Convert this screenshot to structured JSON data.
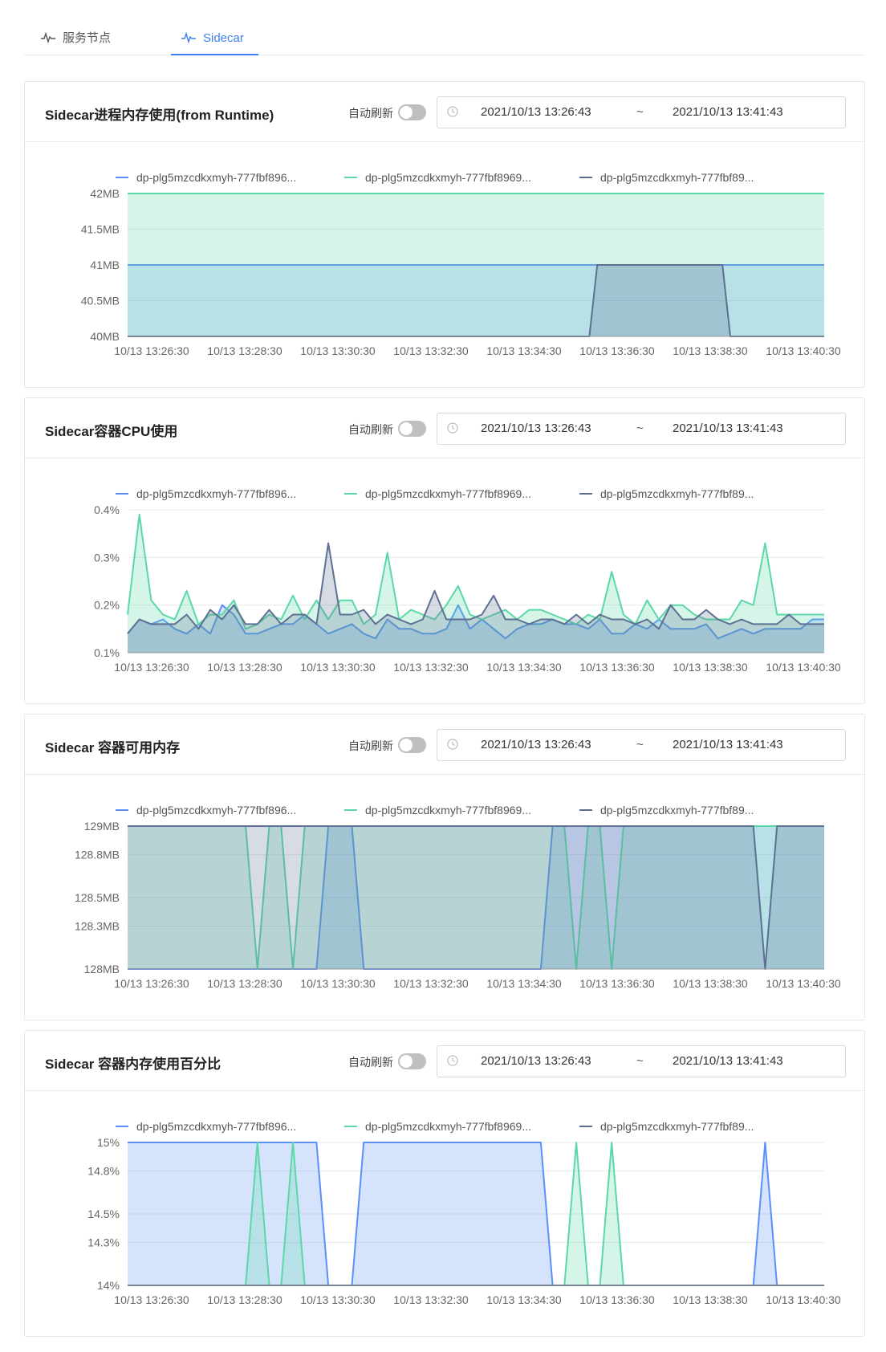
{
  "tabs": [
    {
      "label": "服务节点",
      "icon": "pulse-icon",
      "active": false
    },
    {
      "label": "Sidecar",
      "icon": "pulse-icon",
      "active": true
    }
  ],
  "colors": {
    "series1": "#5b8ff9",
    "series2": "#5ad8a6",
    "series3": "#5d7092",
    "accent": "#3d7ff0"
  },
  "panels": [
    {
      "title": "Sidecar进程内存使用(from Runtime)",
      "auto_refresh_label": "自动刷新",
      "start": "2021/10/13 13:26:43",
      "separator": "~",
      "end": "2021/10/13 13:41:43"
    },
    {
      "title": "Sidecar容器CPU使用",
      "auto_refresh_label": "自动刷新",
      "start": "2021/10/13 13:26:43",
      "separator": "~",
      "end": "2021/10/13 13:41:43"
    },
    {
      "title": "Sidecar 容器可用内存",
      "auto_refresh_label": "自动刷新",
      "start": "2021/10/13 13:26:43",
      "separator": "~",
      "end": "2021/10/13 13:41:43"
    },
    {
      "title": "Sidecar 容器内存使用百分比",
      "auto_refresh_label": "自动刷新",
      "start": "2021/10/13 13:26:43",
      "separator": "~",
      "end": "2021/10/13 13:41:43"
    }
  ],
  "chart_data": [
    {
      "type": "area",
      "legend": [
        "dp-plg5mzcdkxmyh-777fbf896...",
        "dp-plg5mzcdkxmyh-777fbf8969...",
        "dp-plg5mzcdkxmyh-777fbf89..."
      ],
      "ylim": [
        40,
        42
      ],
      "yticks": [
        40,
        40.5,
        41,
        41.5,
        42
      ],
      "ytick_labels": [
        "40MB",
        "40.5MB",
        "41MB",
        "41.5MB",
        "42MB"
      ],
      "xtick_labels": [
        "10/13 13:26:30",
        "10/13 13:28:30",
        "10/13 13:30:30",
        "10/13 13:32:30",
        "10/13 13:34:30",
        "10/13 13:36:30",
        "10/13 13:38:30",
        "10/13 13:40:30"
      ],
      "series": [
        {
          "values": [
            41,
            41,
            41,
            41,
            41,
            41,
            41,
            41,
            41,
            41,
            41,
            41,
            41,
            41,
            41,
            41,
            41,
            41,
            41,
            41,
            41,
            41,
            41,
            41,
            41,
            41,
            41,
            41,
            41,
            41,
            41,
            41,
            41,
            41,
            41,
            41,
            41,
            41,
            41,
            41,
            41,
            41,
            41,
            41,
            41,
            41,
            41,
            41,
            41,
            41,
            41,
            41,
            41,
            41,
            41,
            41,
            41,
            41,
            41,
            41,
            41,
            41,
            41,
            41,
            41,
            41,
            41,
            41,
            41,
            41,
            41,
            41,
            41,
            41,
            41,
            41,
            41,
            41,
            41,
            41,
            41,
            41,
            41,
            41,
            41,
            41,
            41,
            41,
            41,
            41
          ]
        },
        {
          "values": [
            42,
            42,
            42,
            42,
            42,
            42,
            42,
            42,
            42,
            42,
            42,
            42,
            42,
            42,
            42,
            42,
            42,
            42,
            42,
            42,
            42,
            42,
            42,
            42,
            42,
            42,
            42,
            42,
            42,
            42,
            42,
            42,
            42,
            42,
            42,
            42,
            42,
            42,
            42,
            42,
            42,
            42,
            42,
            42,
            42,
            42,
            42,
            42,
            42,
            42,
            42,
            42,
            42,
            42,
            42,
            42,
            42,
            42,
            42,
            42,
            42,
            42,
            42,
            42,
            42,
            42,
            42,
            42,
            42,
            42,
            42,
            42,
            42,
            42,
            42,
            42,
            42,
            42,
            42,
            42,
            42,
            42,
            42,
            42,
            42,
            42,
            42,
            42,
            42,
            42
          ]
        },
        {
          "values": [
            40,
            40,
            40,
            40,
            40,
            40,
            40,
            40,
            40,
            40,
            40,
            40,
            40,
            40,
            40,
            40,
            40,
            40,
            40,
            40,
            40,
            40,
            40,
            40,
            40,
            40,
            40,
            40,
            40,
            40,
            40,
            40,
            40,
            40,
            40,
            40,
            40,
            40,
            40,
            40,
            40,
            40,
            40,
            40,
            40,
            40,
            40,
            40,
            40,
            40,
            40,
            40,
            40,
            40,
            40,
            40,
            40,
            40,
            40,
            40,
            41,
            41,
            41,
            41,
            41,
            41,
            41,
            41,
            41,
            41,
            41,
            41,
            41,
            41,
            41,
            41,
            41,
            40,
            40,
            40,
            40,
            40,
            40,
            40,
            40,
            40,
            40,
            40,
            40,
            40
          ]
        }
      ]
    },
    {
      "type": "area",
      "legend": [
        "dp-plg5mzcdkxmyh-777fbf896...",
        "dp-plg5mzcdkxmyh-777fbf8969...",
        "dp-plg5mzcdkxmyh-777fbf89..."
      ],
      "ylim": [
        0.1,
        0.4
      ],
      "yticks": [
        0.1,
        0.2,
        0.3,
        0.4
      ],
      "ytick_labels": [
        "0.1%",
        "0.2%",
        "0.3%",
        "0.4%"
      ],
      "xtick_labels": [
        "10/13 13:26:30",
        "10/13 13:28:30",
        "10/13 13:30:30",
        "10/13 13:32:30",
        "10/13 13:34:30",
        "10/13 13:36:30",
        "10/13 13:38:30",
        "10/13 13:40:30"
      ],
      "series": [
        {
          "values": [
            0.14,
            0.17,
            0.16,
            0.17,
            0.15,
            0.14,
            0.16,
            0.14,
            0.2,
            0.18,
            0.14,
            0.14,
            0.15,
            0.16,
            0.16,
            0.18,
            0.16,
            0.14,
            0.15,
            0.16,
            0.14,
            0.13,
            0.17,
            0.15,
            0.15,
            0.14,
            0.14,
            0.15,
            0.2,
            0.15,
            0.17,
            0.15,
            0.13,
            0.15,
            0.16,
            0.16,
            0.17,
            0.16,
            0.16,
            0.15,
            0.17,
            0.14,
            0.14,
            0.16,
            0.15,
            0.17,
            0.15,
            0.15,
            0.15,
            0.16,
            0.13,
            0.14,
            0.15,
            0.14,
            0.15,
            0.15,
            0.15,
            0.15,
            0.17,
            0.17
          ]
        },
        {
          "values": [
            0.18,
            0.39,
            0.21,
            0.18,
            0.17,
            0.23,
            0.16,
            0.18,
            0.18,
            0.21,
            0.15,
            0.16,
            0.18,
            0.17,
            0.22,
            0.17,
            0.21,
            0.17,
            0.21,
            0.21,
            0.16,
            0.18,
            0.31,
            0.17,
            0.19,
            0.18,
            0.17,
            0.2,
            0.24,
            0.18,
            0.17,
            0.18,
            0.19,
            0.17,
            0.19,
            0.19,
            0.18,
            0.17,
            0.16,
            0.18,
            0.17,
            0.27,
            0.18,
            0.16,
            0.21,
            0.17,
            0.2,
            0.2,
            0.18,
            0.17,
            0.17,
            0.17,
            0.21,
            0.2,
            0.33,
            0.18,
            0.18,
            0.18,
            0.18,
            0.18
          ]
        },
        {
          "values": [
            0.14,
            0.17,
            0.16,
            0.16,
            0.16,
            0.18,
            0.15,
            0.19,
            0.17,
            0.2,
            0.16,
            0.16,
            0.19,
            0.16,
            0.18,
            0.18,
            0.16,
            0.33,
            0.18,
            0.18,
            0.19,
            0.16,
            0.18,
            0.17,
            0.16,
            0.17,
            0.23,
            0.17,
            0.17,
            0.17,
            0.18,
            0.22,
            0.17,
            0.17,
            0.16,
            0.17,
            0.17,
            0.16,
            0.18,
            0.16,
            0.18,
            0.17,
            0.17,
            0.16,
            0.17,
            0.15,
            0.2,
            0.17,
            0.17,
            0.19,
            0.17,
            0.16,
            0.17,
            0.16,
            0.16,
            0.16,
            0.18,
            0.16,
            0.16,
            0.16
          ]
        }
      ]
    },
    {
      "type": "area",
      "legend": [
        "dp-plg5mzcdkxmyh-777fbf896...",
        "dp-plg5mzcdkxmyh-777fbf8969...",
        "dp-plg5mzcdkxmyh-777fbf89..."
      ],
      "ylim": [
        128,
        129
      ],
      "yticks": [
        128,
        128.3,
        128.5,
        128.8,
        129
      ],
      "ytick_labels": [
        "128MB",
        "128.3MB",
        "128.5MB",
        "128.8MB",
        "129MB"
      ],
      "xtick_labels": [
        "10/13 13:26:30",
        "10/13 13:28:30",
        "10/13 13:30:30",
        "10/13 13:32:30",
        "10/13 13:34:30",
        "10/13 13:36:30",
        "10/13 13:38:30",
        "10/13 13:40:30"
      ],
      "series": [
        {
          "values": [
            128,
            128,
            128,
            128,
            128,
            128,
            128,
            128,
            128,
            128,
            128,
            128,
            128,
            128,
            128,
            128,
            128,
            129,
            129,
            129,
            128,
            128,
            128,
            128,
            128,
            128,
            128,
            128,
            128,
            128,
            128,
            128,
            128,
            128,
            128,
            128,
            129,
            129,
            129,
            129,
            129,
            129,
            129,
            129,
            129,
            129,
            129,
            129,
            129,
            129,
            129,
            129,
            129,
            129,
            129,
            129,
            129,
            129,
            129,
            129
          ]
        },
        {
          "values": [
            129,
            129,
            129,
            129,
            129,
            129,
            129,
            129,
            129,
            129,
            129,
            128,
            129,
            129,
            128,
            129,
            129,
            129,
            129,
            129,
            129,
            129,
            129,
            129,
            129,
            129,
            129,
            129,
            129,
            129,
            129,
            129,
            129,
            129,
            129,
            129,
            129,
            129,
            128,
            129,
            129,
            128,
            129,
            129,
            129,
            129,
            129,
            129,
            129,
            129,
            129,
            129,
            129,
            129,
            129,
            129,
            129,
            129,
            129,
            129
          ]
        },
        {
          "values": [
            129,
            129,
            129,
            129,
            129,
            129,
            129,
            129,
            129,
            129,
            129,
            129,
            129,
            129,
            129,
            129,
            129,
            129,
            129,
            129,
            129,
            129,
            129,
            129,
            129,
            129,
            129,
            129,
            129,
            129,
            129,
            129,
            129,
            129,
            129,
            129,
            129,
            129,
            129,
            129,
            129,
            129,
            129,
            129,
            129,
            129,
            129,
            129,
            129,
            129,
            129,
            129,
            129,
            129,
            128,
            129,
            129,
            129,
            129,
            129
          ]
        }
      ]
    },
    {
      "type": "area",
      "legend": [
        "dp-plg5mzcdkxmyh-777fbf896...",
        "dp-plg5mzcdkxmyh-777fbf8969...",
        "dp-plg5mzcdkxmyh-777fbf89..."
      ],
      "ylim": [
        14,
        15
      ],
      "yticks": [
        14,
        14.3,
        14.5,
        14.8,
        15
      ],
      "ytick_labels": [
        "14%",
        "14.3%",
        "14.5%",
        "14.8%",
        "15%"
      ],
      "xtick_labels": [
        "10/13 13:26:30",
        "10/13 13:28:30",
        "10/13 13:30:30",
        "10/13 13:32:30",
        "10/13 13:34:30",
        "10/13 13:36:30",
        "10/13 13:38:30",
        "10/13 13:40:30"
      ],
      "series": [
        {
          "values": [
            15,
            15,
            15,
            15,
            15,
            15,
            15,
            15,
            15,
            15,
            15,
            15,
            15,
            15,
            15,
            15,
            15,
            14,
            14,
            14,
            15,
            15,
            15,
            15,
            15,
            15,
            15,
            15,
            15,
            15,
            15,
            15,
            15,
            15,
            15,
            15,
            14,
            14,
            14,
            14,
            14,
            14,
            14,
            14,
            14,
            14,
            14,
            14,
            14,
            14,
            14,
            14,
            14,
            14,
            15,
            14,
            14,
            14,
            14,
            14
          ]
        },
        {
          "values": [
            14,
            14,
            14,
            14,
            14,
            14,
            14,
            14,
            14,
            14,
            14,
            15,
            14,
            14,
            15,
            14,
            14,
            14,
            14,
            14,
            14,
            14,
            14,
            14,
            14,
            14,
            14,
            14,
            14,
            14,
            14,
            14,
            14,
            14,
            14,
            14,
            14,
            14,
            15,
            14,
            14,
            15,
            14,
            14,
            14,
            14,
            14,
            14,
            14,
            14,
            14,
            14,
            14,
            14,
            14,
            14,
            14,
            14,
            14,
            14
          ]
        },
        {
          "values": [
            14,
            14,
            14,
            14,
            14,
            14,
            14,
            14,
            14,
            14,
            14,
            14,
            14,
            14,
            14,
            14,
            14,
            14,
            14,
            14,
            14,
            14,
            14,
            14,
            14,
            14,
            14,
            14,
            14,
            14,
            14,
            14,
            14,
            14,
            14,
            14,
            14,
            14,
            14,
            14,
            14,
            14,
            14,
            14,
            14,
            14,
            14,
            14,
            14,
            14,
            14,
            14,
            14,
            14,
            14,
            14,
            14,
            14,
            14,
            14
          ]
        }
      ]
    }
  ]
}
